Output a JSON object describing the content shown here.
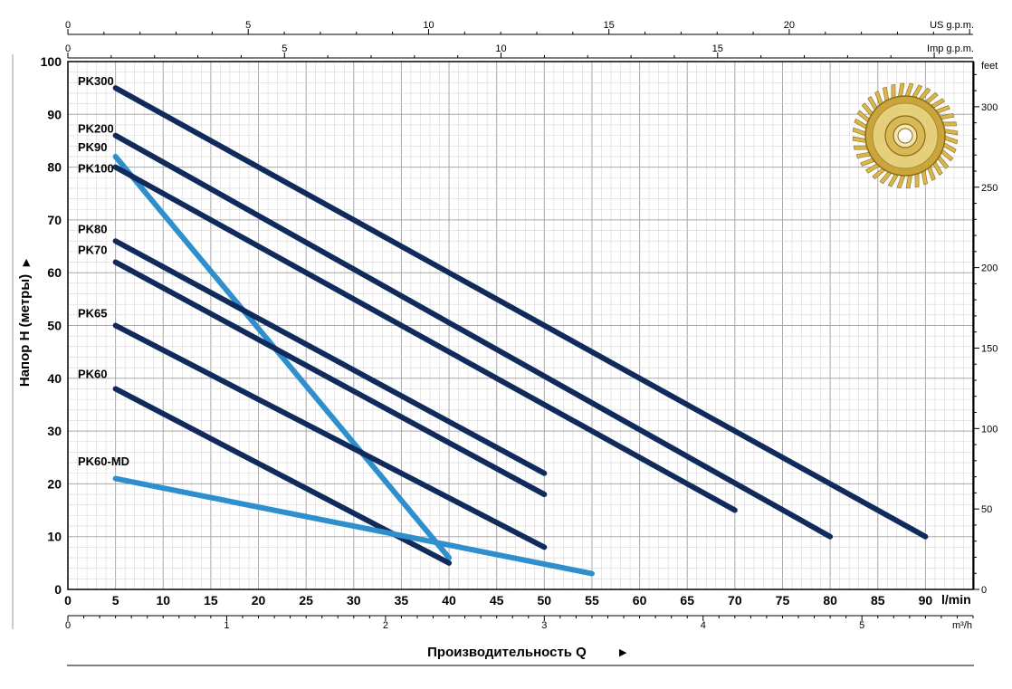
{
  "chart_data": {
    "type": "line",
    "ylabel": "Напор H (метры)",
    "xlabel": "Производительность Q",
    "units": {
      "x_main": "l/min",
      "x_bottom": "m³/h",
      "x_top1": "US g.p.m.",
      "x_top2": "Imp g.p.m.",
      "y_right": "feet"
    },
    "xlim": [
      0,
      95
    ],
    "ylim": [
      0,
      100
    ],
    "x_ticks": [
      "0",
      "5",
      "10",
      "15",
      "20",
      "25",
      "30",
      "35",
      "40",
      "45",
      "50",
      "55",
      "60",
      "65",
      "70",
      "75",
      "80",
      "85",
      "90"
    ],
    "y_ticks": [
      "0",
      "10",
      "20",
      "30",
      "40",
      "50",
      "60",
      "70",
      "80",
      "90",
      "100"
    ],
    "x_bottom_ticks": [
      "0",
      "1",
      "2",
      "3",
      "4",
      "5"
    ],
    "x_top1_ticks": [
      "0",
      "5",
      "10",
      "15",
      "20"
    ],
    "x_top2_ticks": [
      "0",
      "5",
      "10",
      "15"
    ],
    "y_right_ticks": [
      "0",
      "50",
      "100",
      "150",
      "200",
      "250",
      "300"
    ],
    "grid": true,
    "series": [
      {
        "name": "PK300",
        "color": "#102a5c",
        "x": [
          5,
          90
        ],
        "y": [
          95,
          10
        ]
      },
      {
        "name": "PK200",
        "color": "#102a5c",
        "x": [
          5,
          80
        ],
        "y": [
          86,
          10
        ]
      },
      {
        "name": "PK90",
        "color": "#2f8fcc",
        "x": [
          5,
          40
        ],
        "y": [
          82,
          6
        ]
      },
      {
        "name": "PK100",
        "color": "#102a5c",
        "x": [
          5,
          70
        ],
        "y": [
          80,
          15
        ]
      },
      {
        "name": "PK80",
        "color": "#102a5c",
        "x": [
          5,
          50
        ],
        "y": [
          66,
          22
        ]
      },
      {
        "name": "PK70",
        "color": "#102a5c",
        "x": [
          5,
          50
        ],
        "y": [
          62,
          18
        ]
      },
      {
        "name": "PK65",
        "color": "#102a5c",
        "x": [
          5,
          50
        ],
        "y": [
          50,
          8
        ]
      },
      {
        "name": "PK60",
        "color": "#102a5c",
        "x": [
          5,
          40
        ],
        "y": [
          38,
          5
        ]
      },
      {
        "name": "PK60-MD",
        "color": "#2f8fcc",
        "x": [
          5,
          55
        ],
        "y": [
          21,
          3
        ]
      }
    ]
  }
}
